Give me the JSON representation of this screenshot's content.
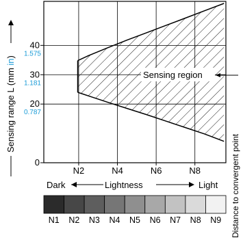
{
  "chart_data": {
    "type": "area",
    "ylabel": "Sensing range L (mm in)",
    "ylabel_main": "Sensing range L (mm ",
    "ylabel_unit": "in",
    "ylabel_close": ")",
    "y_ticks": [
      {
        "mm": "0",
        "inch": ""
      },
      {
        "mm": "20",
        "inch": "0.787"
      },
      {
        "mm": "30",
        "inch": "1.181"
      },
      {
        "mm": "40",
        "inch": "1.575"
      }
    ],
    "x_ticks": [
      "N2",
      "N4",
      "N6",
      "N8"
    ],
    "x_label_left": "Dark",
    "x_label_mid": "Lightness",
    "x_label_right": "Light",
    "scale_labels": [
      "N1",
      "N2",
      "N3",
      "N4",
      "N5",
      "N6",
      "N7",
      "N8",
      "N9"
    ],
    "scale_colors": [
      "#2b2b2b",
      "#474747",
      "#5e5e5e",
      "#767676",
      "#8f8f8f",
      "#a8a8a8",
      "#c2c2c2",
      "#dadada",
      "#f2f2f2"
    ],
    "region_label": "Sensing region",
    "right_label": "Distance to convergent point",
    "upper_bound": [
      [
        1.95,
        34.8
      ],
      [
        2.5,
        36.5
      ],
      [
        3.5,
        39.2
      ],
      [
        4.5,
        41.8
      ],
      [
        5.5,
        44.3
      ],
      [
        6.5,
        46.8
      ],
      [
        7.5,
        49.3
      ],
      [
        8.5,
        51.8
      ],
      [
        9.5,
        54.3
      ]
    ],
    "lower_bound": [
      [
        1.95,
        24.0
      ],
      [
        2.5,
        22.8
      ],
      [
        3.5,
        20.6
      ],
      [
        4.5,
        18.5
      ],
      [
        5.5,
        16.4
      ],
      [
        6.5,
        14.2
      ],
      [
        7.5,
        12.0
      ],
      [
        8.5,
        9.8
      ],
      [
        9.5,
        7.3
      ]
    ],
    "xlim": [
      0.2,
      9.6
    ],
    "ylim": [
      0,
      55
    ],
    "unit_color": "#1a9bd7"
  }
}
